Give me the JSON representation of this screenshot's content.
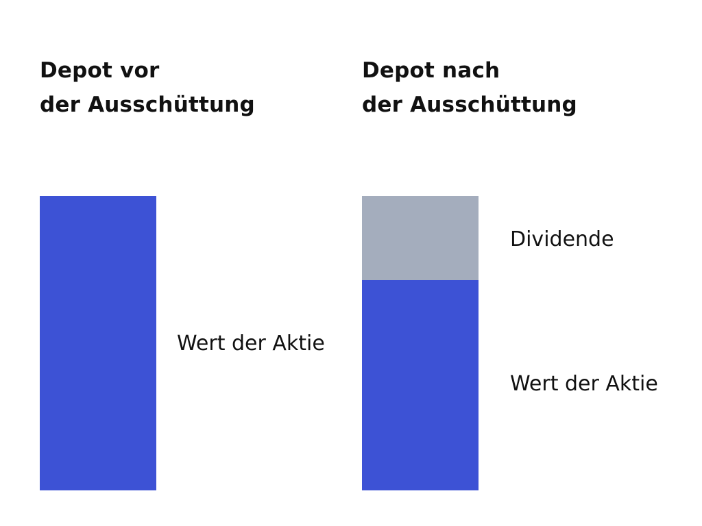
{
  "colors": {
    "stock": "#3d52d5",
    "dividend": "#a4adbd",
    "text": "#111111"
  },
  "before": {
    "title_line1": "Depot vor",
    "title_line2": "der Ausschüttung",
    "segments": [
      {
        "label": "Wert der Aktie",
        "share": 1.0,
        "color_key": "stock"
      }
    ]
  },
  "after": {
    "title_line1": "Depot nach",
    "title_line2": "der Ausschüttung",
    "segments": [
      {
        "label": "Dividende",
        "share": 0.285,
        "color_key": "dividend"
      },
      {
        "label": "Wert der Aktie",
        "share": 0.715,
        "color_key": "stock"
      }
    ]
  }
}
